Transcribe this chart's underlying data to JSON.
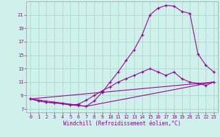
{
  "xlabel": "Windchill (Refroidissement éolien,°C)",
  "bg_color": "#cff0eb",
  "grid_color": "#aaddcc",
  "line_color": "#990099",
  "xlim": [
    -0.5,
    23.5
  ],
  "ylim": [
    6.5,
    23.0
  ],
  "xticks": [
    0,
    1,
    2,
    3,
    4,
    5,
    6,
    7,
    8,
    9,
    10,
    11,
    12,
    13,
    14,
    15,
    16,
    17,
    18,
    19,
    20,
    21,
    22,
    23
  ],
  "yticks": [
    7,
    9,
    11,
    13,
    15,
    17,
    19,
    21
  ],
  "series1_x": [
    0,
    1,
    2,
    3,
    4,
    5,
    6,
    7,
    8,
    9,
    10,
    11,
    12,
    13,
    14,
    15,
    16,
    17,
    18,
    19,
    20,
    21,
    22,
    23
  ],
  "series1_y": [
    8.5,
    8.2,
    8.0,
    7.9,
    7.8,
    7.6,
    7.5,
    7.4,
    8.2,
    9.5,
    11.0,
    12.5,
    14.2,
    15.8,
    18.0,
    21.0,
    22.0,
    22.4,
    22.3,
    21.5,
    21.2,
    15.2,
    13.5,
    12.5
  ],
  "series2_x": [
    0,
    1,
    2,
    3,
    4,
    5,
    6,
    7,
    8,
    9,
    10,
    11,
    12,
    13,
    14,
    15,
    16,
    17,
    18,
    19,
    20,
    21,
    22,
    23
  ],
  "series2_y": [
    8.5,
    8.2,
    8.0,
    7.9,
    7.8,
    7.6,
    7.7,
    8.3,
    9.0,
    9.7,
    10.3,
    11.0,
    11.5,
    12.0,
    12.5,
    13.0,
    12.5,
    12.0,
    12.5,
    11.5,
    11.0,
    10.8,
    10.5,
    11.0
  ],
  "series3_x": [
    0,
    23
  ],
  "series3_y": [
    8.5,
    11.0
  ],
  "series4_x": [
    0,
    7,
    23
  ],
  "series4_y": [
    8.5,
    7.4,
    11.0
  ]
}
